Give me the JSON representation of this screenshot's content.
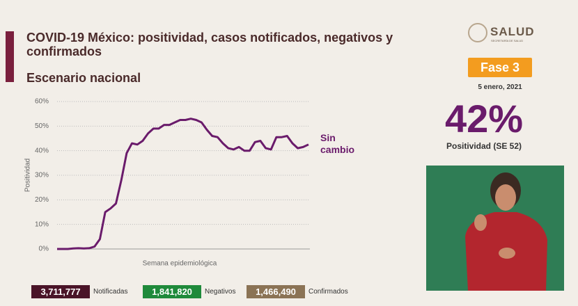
{
  "chart_data": {
    "type": "line",
    "title": "COVID-19 México: positividad, casos notificados, negativos y confirmados",
    "subtitle": "Escenario nacional",
    "y_label": "Positividad",
    "x_label": "Semana epidemiológica",
    "annotation": "Sin cambio",
    "color": "#6a1b6b",
    "values": [
      0,
      0,
      0,
      0.2,
      0.3,
      0.2,
      0.3,
      1,
      4,
      15,
      16.5,
      18.5,
      28,
      39,
      43,
      42.5,
      44,
      47,
      49,
      49,
      50.5,
      50.5,
      51.5,
      52.5,
      52.5,
      53,
      52.5,
      51.5,
      48.5,
      46,
      45.5,
      43,
      41,
      40.5,
      41.5,
      40,
      40,
      43.5,
      44,
      41,
      40.5,
      45.5,
      45.5,
      46,
      43,
      41,
      41.5,
      42.5
    ],
    "ylim": [
      0,
      60
    ],
    "yticks": [
      {
        "value": 0,
        "label": "0%"
      },
      {
        "value": 10,
        "label": "10%"
      },
      {
        "value": 20,
        "label": "20%"
      },
      {
        "value": 30,
        "label": "30%"
      },
      {
        "value": 40,
        "label": "40%"
      },
      {
        "value": 50,
        "label": "50%"
      },
      {
        "value": 60,
        "label": "60%"
      }
    ],
    "grid": true
  },
  "header": {
    "logo": "SALUD",
    "logo_sub": "SECRETARÍA DE SALUD",
    "phase": "Fase 3",
    "date": "5 enero, 2021"
  },
  "kpi": {
    "value": "42%",
    "label": "Positividad (SE 52)"
  },
  "counters": [
    {
      "value": "3,711,777",
      "label": "Notificadas",
      "color": "#4a1428"
    },
    {
      "value": "1,841,820",
      "label": "Negativos",
      "color": "#1f8a3b"
    },
    {
      "value": "1,466,490",
      "label": "Confirmados",
      "color": "#8b7355"
    }
  ]
}
